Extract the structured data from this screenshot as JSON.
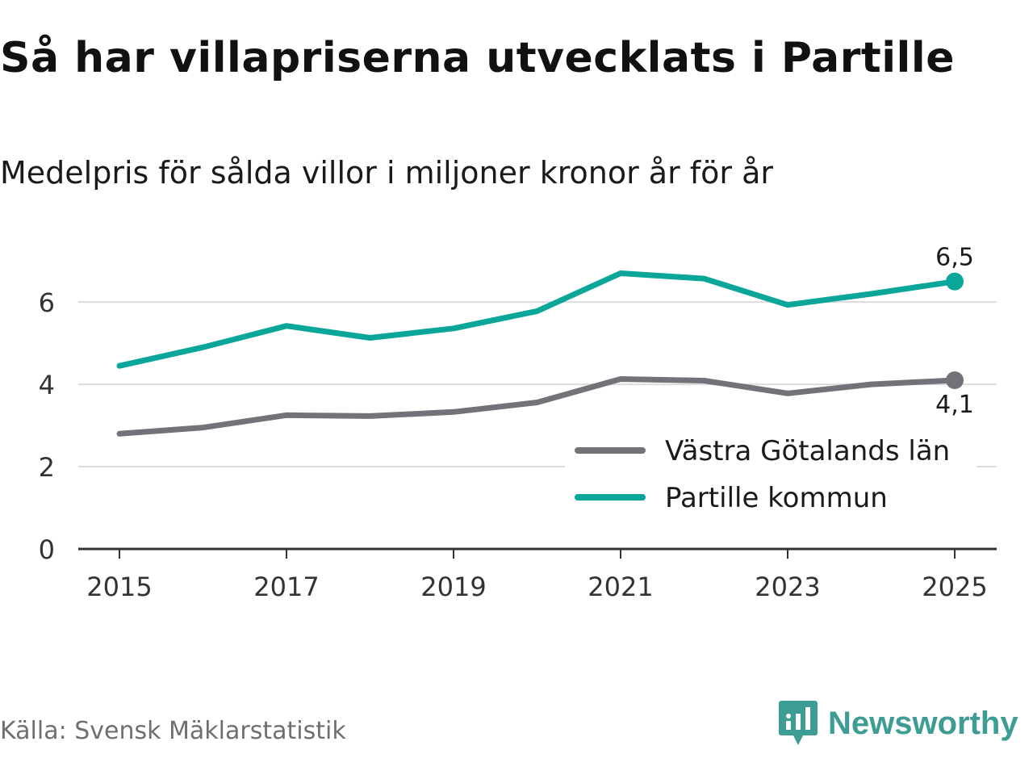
{
  "title": "Så har villapriserna utvecklats i Partille",
  "subtitle": "Medelpris för sålda villor i miljoner kronor år för år",
  "source": "Källa: Svensk Mäklarstatistik",
  "brand": {
    "name": "Newsworthy",
    "color": "#3d9c93",
    "icon": "newsworthy-logo-icon"
  },
  "chart_data": {
    "type": "line",
    "title": "Så har villapriserna utvecklats i Partille",
    "subtitle": "Medelpris för sålda villor i miljoner kronor år för år",
    "xlabel": "",
    "ylabel": "",
    "x": [
      2015,
      2016,
      2017,
      2018,
      2019,
      2020,
      2021,
      2022,
      2023,
      2024,
      2025
    ],
    "xticks": [
      "2015",
      "2017",
      "2019",
      "2021",
      "2023",
      "2025"
    ],
    "yticks": [
      "0",
      "2",
      "4",
      "6"
    ],
    "ylim": [
      0,
      7.2
    ],
    "grid": true,
    "legend_position": "bottom-right",
    "series": [
      {
        "name": "Västra Götalands län",
        "color": "#737278",
        "values": [
          2.8,
          2.95,
          3.25,
          3.23,
          3.33,
          3.56,
          4.13,
          4.09,
          3.78,
          4.0,
          4.1
        ],
        "end_label": "4,1"
      },
      {
        "name": "Partille kommun",
        "color": "#0ba69a",
        "values": [
          4.45,
          4.9,
          5.42,
          5.13,
          5.36,
          5.78,
          6.7,
          6.57,
          5.93,
          6.2,
          6.5
        ],
        "end_label": "6,5"
      }
    ]
  }
}
